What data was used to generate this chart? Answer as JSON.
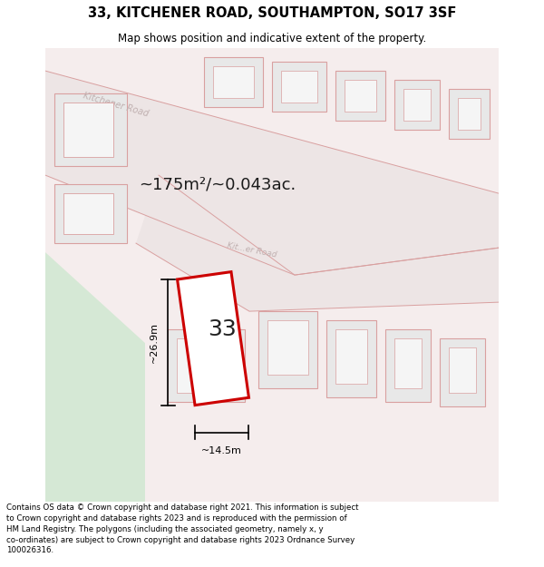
{
  "title": "33, KITCHENER ROAD, SOUTHAMPTON, SO17 3SF",
  "subtitle": "Map shows position and indicative extent of the property.",
  "area_text": "~175m²/~0.043ac.",
  "label": "33",
  "dim_width": "~14.5m",
  "dim_height": "~26.9m",
  "map_bg": "#f5eded",
  "road_fill": "#ede5e5",
  "road_line": "#d9a0a0",
  "plot_edge": "#cc0000",
  "plot_fill": "#ffffff",
  "plot_lw": 2.2,
  "nbr_fill": "#e8e8e8",
  "nbr_edge": "#d9a0a0",
  "nbr_lw": 0.8,
  "green_fill": "#d5e8d5",
  "road_label_color": "#c0b0b0",
  "title_fontsize": 10.5,
  "subtitle_fontsize": 8.5,
  "footer_fontsize": 6.2,
  "footer_text": "Contains OS data © Crown copyright and database right 2021. This information is subject to Crown copyright and database rights 2023 and is reproduced with the permission of HM Land Registry. The polygons (including the associated geometry, namely x, y co-ordinates) are subject to Crown copyright and database rights 2023 Ordnance Survey 100026316."
}
